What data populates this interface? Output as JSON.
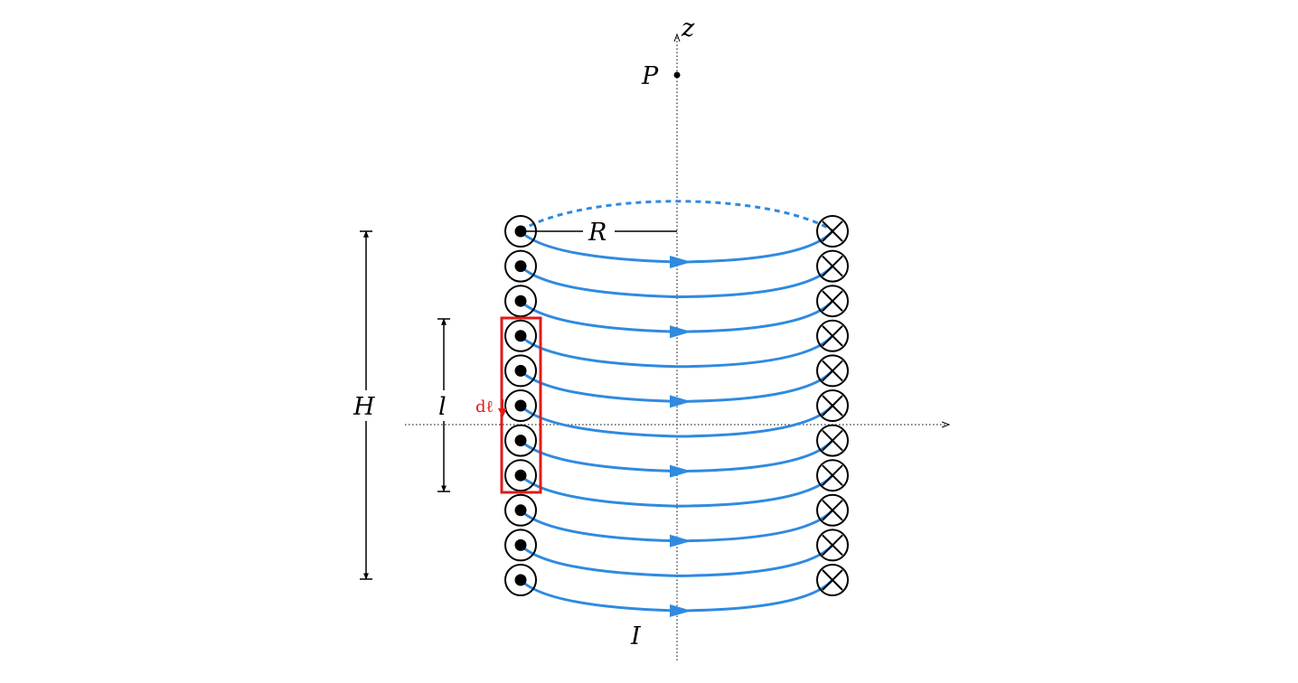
{
  "diagram": {
    "labels": {
      "z_axis": "z",
      "point": "P",
      "radius": "R",
      "height": "H",
      "length": "l",
      "current": "I",
      "element": "dℓ"
    },
    "colors": {
      "coil": "#2f8ae0",
      "highlight": "#e01b1b",
      "ink": "#000000"
    },
    "turns": 11,
    "symbols": {
      "left_side": "current-out-of-page",
      "right_side": "current-into-page"
    }
  }
}
